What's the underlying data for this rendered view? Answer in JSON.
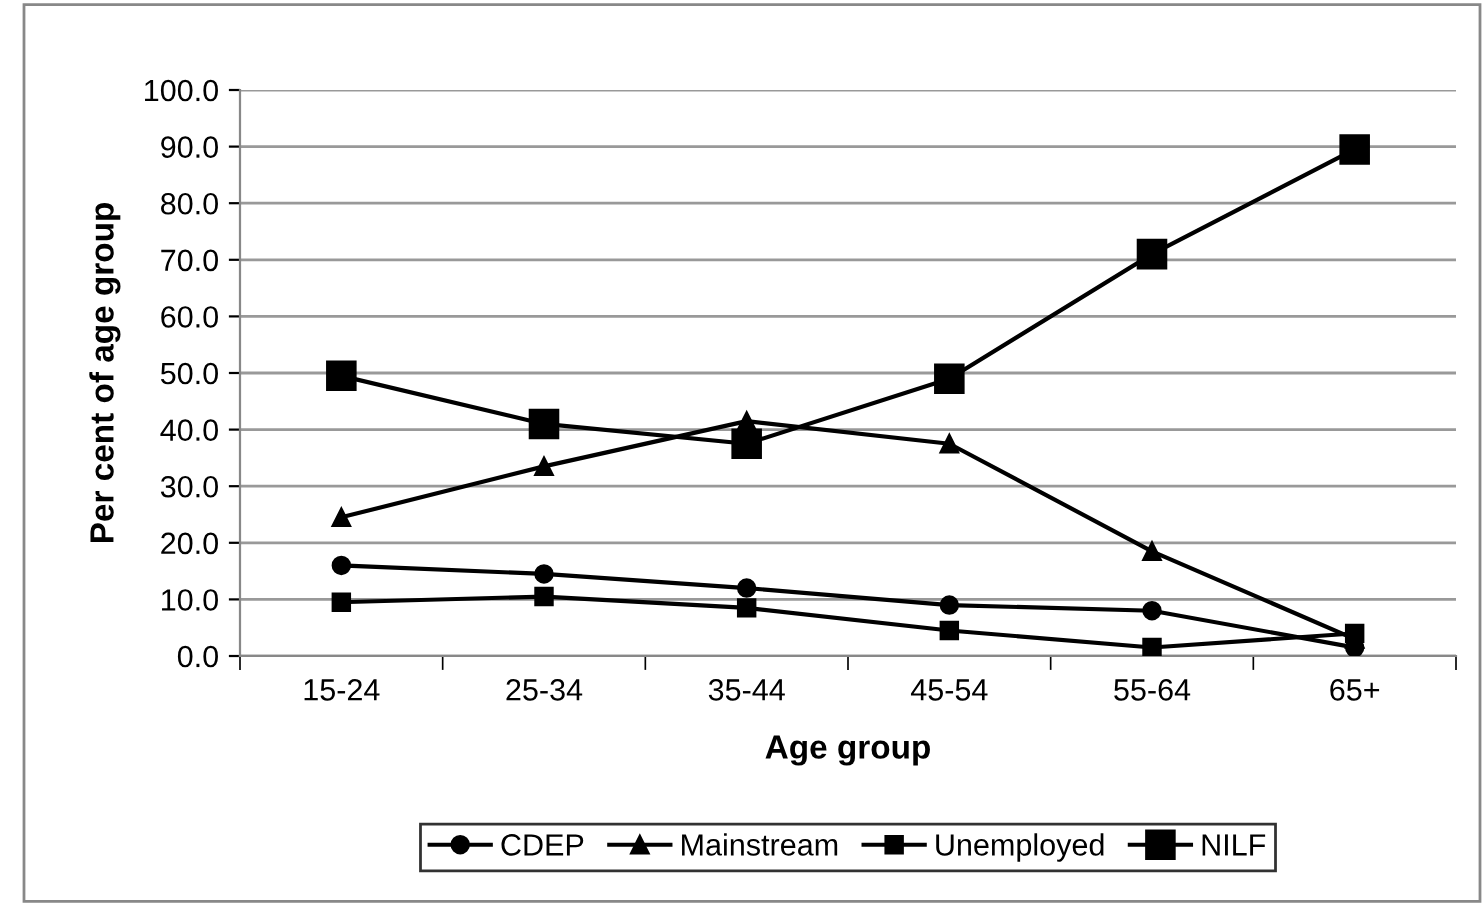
{
  "chart_data": {
    "type": "line",
    "xlabel": "Age group",
    "ylabel": "Per cent of age group",
    "categories": [
      "15-24",
      "25-34",
      "35-44",
      "45-54",
      "55-64",
      "65+"
    ],
    "series": [
      {
        "name": "CDEP",
        "color": "#000000",
        "marker": "circle",
        "values": [
          16,
          14.5,
          12,
          9,
          8,
          1.5
        ]
      },
      {
        "name": "Mainstream",
        "color": "#000000",
        "marker": "triangle",
        "values": [
          24.5,
          33.5,
          41.5,
          37.5,
          18.5,
          3
        ]
      },
      {
        "name": "Unemployed",
        "color": "#000000",
        "marker": "square",
        "values": [
          9.5,
          10.5,
          8.5,
          4.5,
          1.5,
          4
        ]
      },
      {
        "name": "NILF",
        "color": "#000000",
        "marker": "square",
        "values": [
          49.5,
          41,
          37.5,
          49,
          71,
          89.5
        ]
      }
    ],
    "ylim": [
      0,
      100
    ],
    "yticks": [
      {
        "value": 0,
        "label": "0.0"
      },
      {
        "value": 10,
        "label": "10.0"
      },
      {
        "value": 20,
        "label": "20.0"
      },
      {
        "value": 30,
        "label": "30.0"
      },
      {
        "value": 40,
        "label": "40.0"
      },
      {
        "value": 50,
        "label": "50.0"
      },
      {
        "value": 60,
        "label": "60.0"
      },
      {
        "value": 70,
        "label": "70.0"
      },
      {
        "value": 80,
        "label": "80.0"
      },
      {
        "value": 90,
        "label": "90.0"
      },
      {
        "value": 100,
        "label": "100.0"
      }
    ],
    "grid": "y",
    "legend": "bottom",
    "line_style": "solid"
  }
}
